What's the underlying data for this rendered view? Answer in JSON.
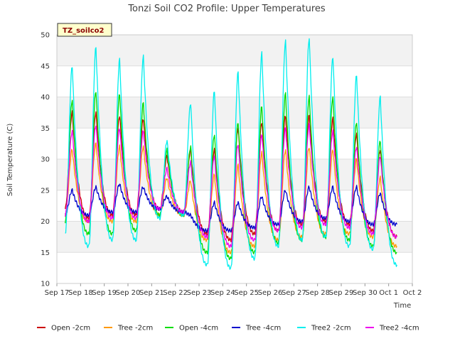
{
  "chart_data": {
    "type": "line",
    "title": "Tonzi Soil CO2 Profile: Upper Temperatures",
    "xlabel": "Time",
    "ylabel": "Soil Temperature (C)",
    "ylim": [
      10,
      50
    ],
    "yticks": [
      10,
      15,
      20,
      25,
      30,
      35,
      40,
      45,
      50
    ],
    "xlim": [
      0,
      15
    ],
    "xticks": [
      {
        "x": 0,
        "label": "Sep 17"
      },
      {
        "x": 1,
        "label": "Sep 18"
      },
      {
        "x": 2,
        "label": "Sep 19"
      },
      {
        "x": 3,
        "label": "Sep 20"
      },
      {
        "x": 4,
        "label": "Sep 21"
      },
      {
        "x": 5,
        "label": "Sep 22"
      },
      {
        "x": 6,
        "label": "Sep 23"
      },
      {
        "x": 7,
        "label": "Sep 24"
      },
      {
        "x": 8,
        "label": "Sep 25"
      },
      {
        "x": 9,
        "label": "Sep 26"
      },
      {
        "x": 10,
        "label": "Sep 27"
      },
      {
        "x": 11,
        "label": "Sep 28"
      },
      {
        "x": 12,
        "label": "Sep 29"
      },
      {
        "x": 13,
        "label": "Sep 30"
      },
      {
        "x": 14,
        "label": "Oct 1"
      },
      {
        "x": 15,
        "label": "Oct 2"
      }
    ],
    "grid": true,
    "legend_position": "bottom",
    "badge": "TZ_soilco2",
    "x_start": 0.35,
    "x_end": 14.35,
    "series": [
      {
        "name": "Open -2cm",
        "color": "#cc0000",
        "minima": [
          22,
          20.5,
          21,
          21,
          22,
          21.5,
          18,
          17,
          18,
          18.5,
          19.5,
          20,
          19.5,
          18.5,
          17.5,
          19.5
        ],
        "maxima": [
          37.5,
          37.5,
          37,
          36.5,
          30.5,
          31.5,
          31.5,
          35,
          36,
          37,
          37,
          36.5,
          34,
          31.5
        ]
      },
      {
        "name": "Tree -2cm",
        "color": "#ff9900",
        "minima": [
          21,
          20,
          20,
          20,
          21,
          21,
          17,
          15,
          16,
          17,
          17.5,
          18,
          18,
          17.5,
          16,
          17
        ],
        "maxima": [
          31.5,
          32.5,
          32,
          32,
          27,
          26.5,
          27.5,
          29,
          31,
          31.5,
          32,
          31.5,
          30,
          27
        ]
      },
      {
        "name": "Open -4cm",
        "color": "#00dd00",
        "minima": [
          20,
          18,
          18,
          18.5,
          21,
          21,
          15,
          14,
          15,
          16.5,
          17,
          17.5,
          17,
          16,
          15,
          16.5
        ],
        "maxima": [
          39.5,
          41,
          40.5,
          39,
          31.5,
          32,
          34,
          36,
          38.5,
          40.5,
          40,
          40,
          36,
          33
        ]
      },
      {
        "name": "Tree -4cm",
        "color": "#0000cc",
        "minima": [
          21,
          21,
          21.5,
          21.5,
          22,
          21.5,
          18.5,
          18.5,
          19,
          19.5,
          20,
          20.5,
          20,
          19.5,
          19.5,
          19.5
        ],
        "maxima": [
          25,
          25.5,
          26,
          25.5,
          24,
          21,
          23,
          23,
          24,
          25,
          25.5,
          25.5,
          25.5,
          24.5
        ]
      },
      {
        "name": "Tree2 -2cm",
        "color": "#00eeee",
        "minima": [
          18,
          16,
          17,
          17,
          20.5,
          21,
          13,
          12.5,
          14,
          16,
          17,
          17.5,
          16,
          15.5,
          13,
          15
        ],
        "maxima": [
          45,
          48,
          46,
          46.5,
          33,
          39,
          41,
          44,
          47,
          49,
          49.5,
          46.5,
          43.5,
          40
        ]
      },
      {
        "name": "Tree2 -4cm",
        "color": "#ee00ee",
        "minima": [
          21,
          20,
          20.5,
          20.5,
          22,
          21.5,
          17.5,
          16,
          17,
          18.5,
          19,
          19.5,
          19,
          18,
          17.5,
          19
        ],
        "maxima": [
          34.5,
          35.5,
          35,
          34.5,
          28.5,
          29.5,
          30.5,
          32.5,
          34,
          35,
          35.5,
          34.5,
          32,
          30.5
        ]
      }
    ]
  }
}
